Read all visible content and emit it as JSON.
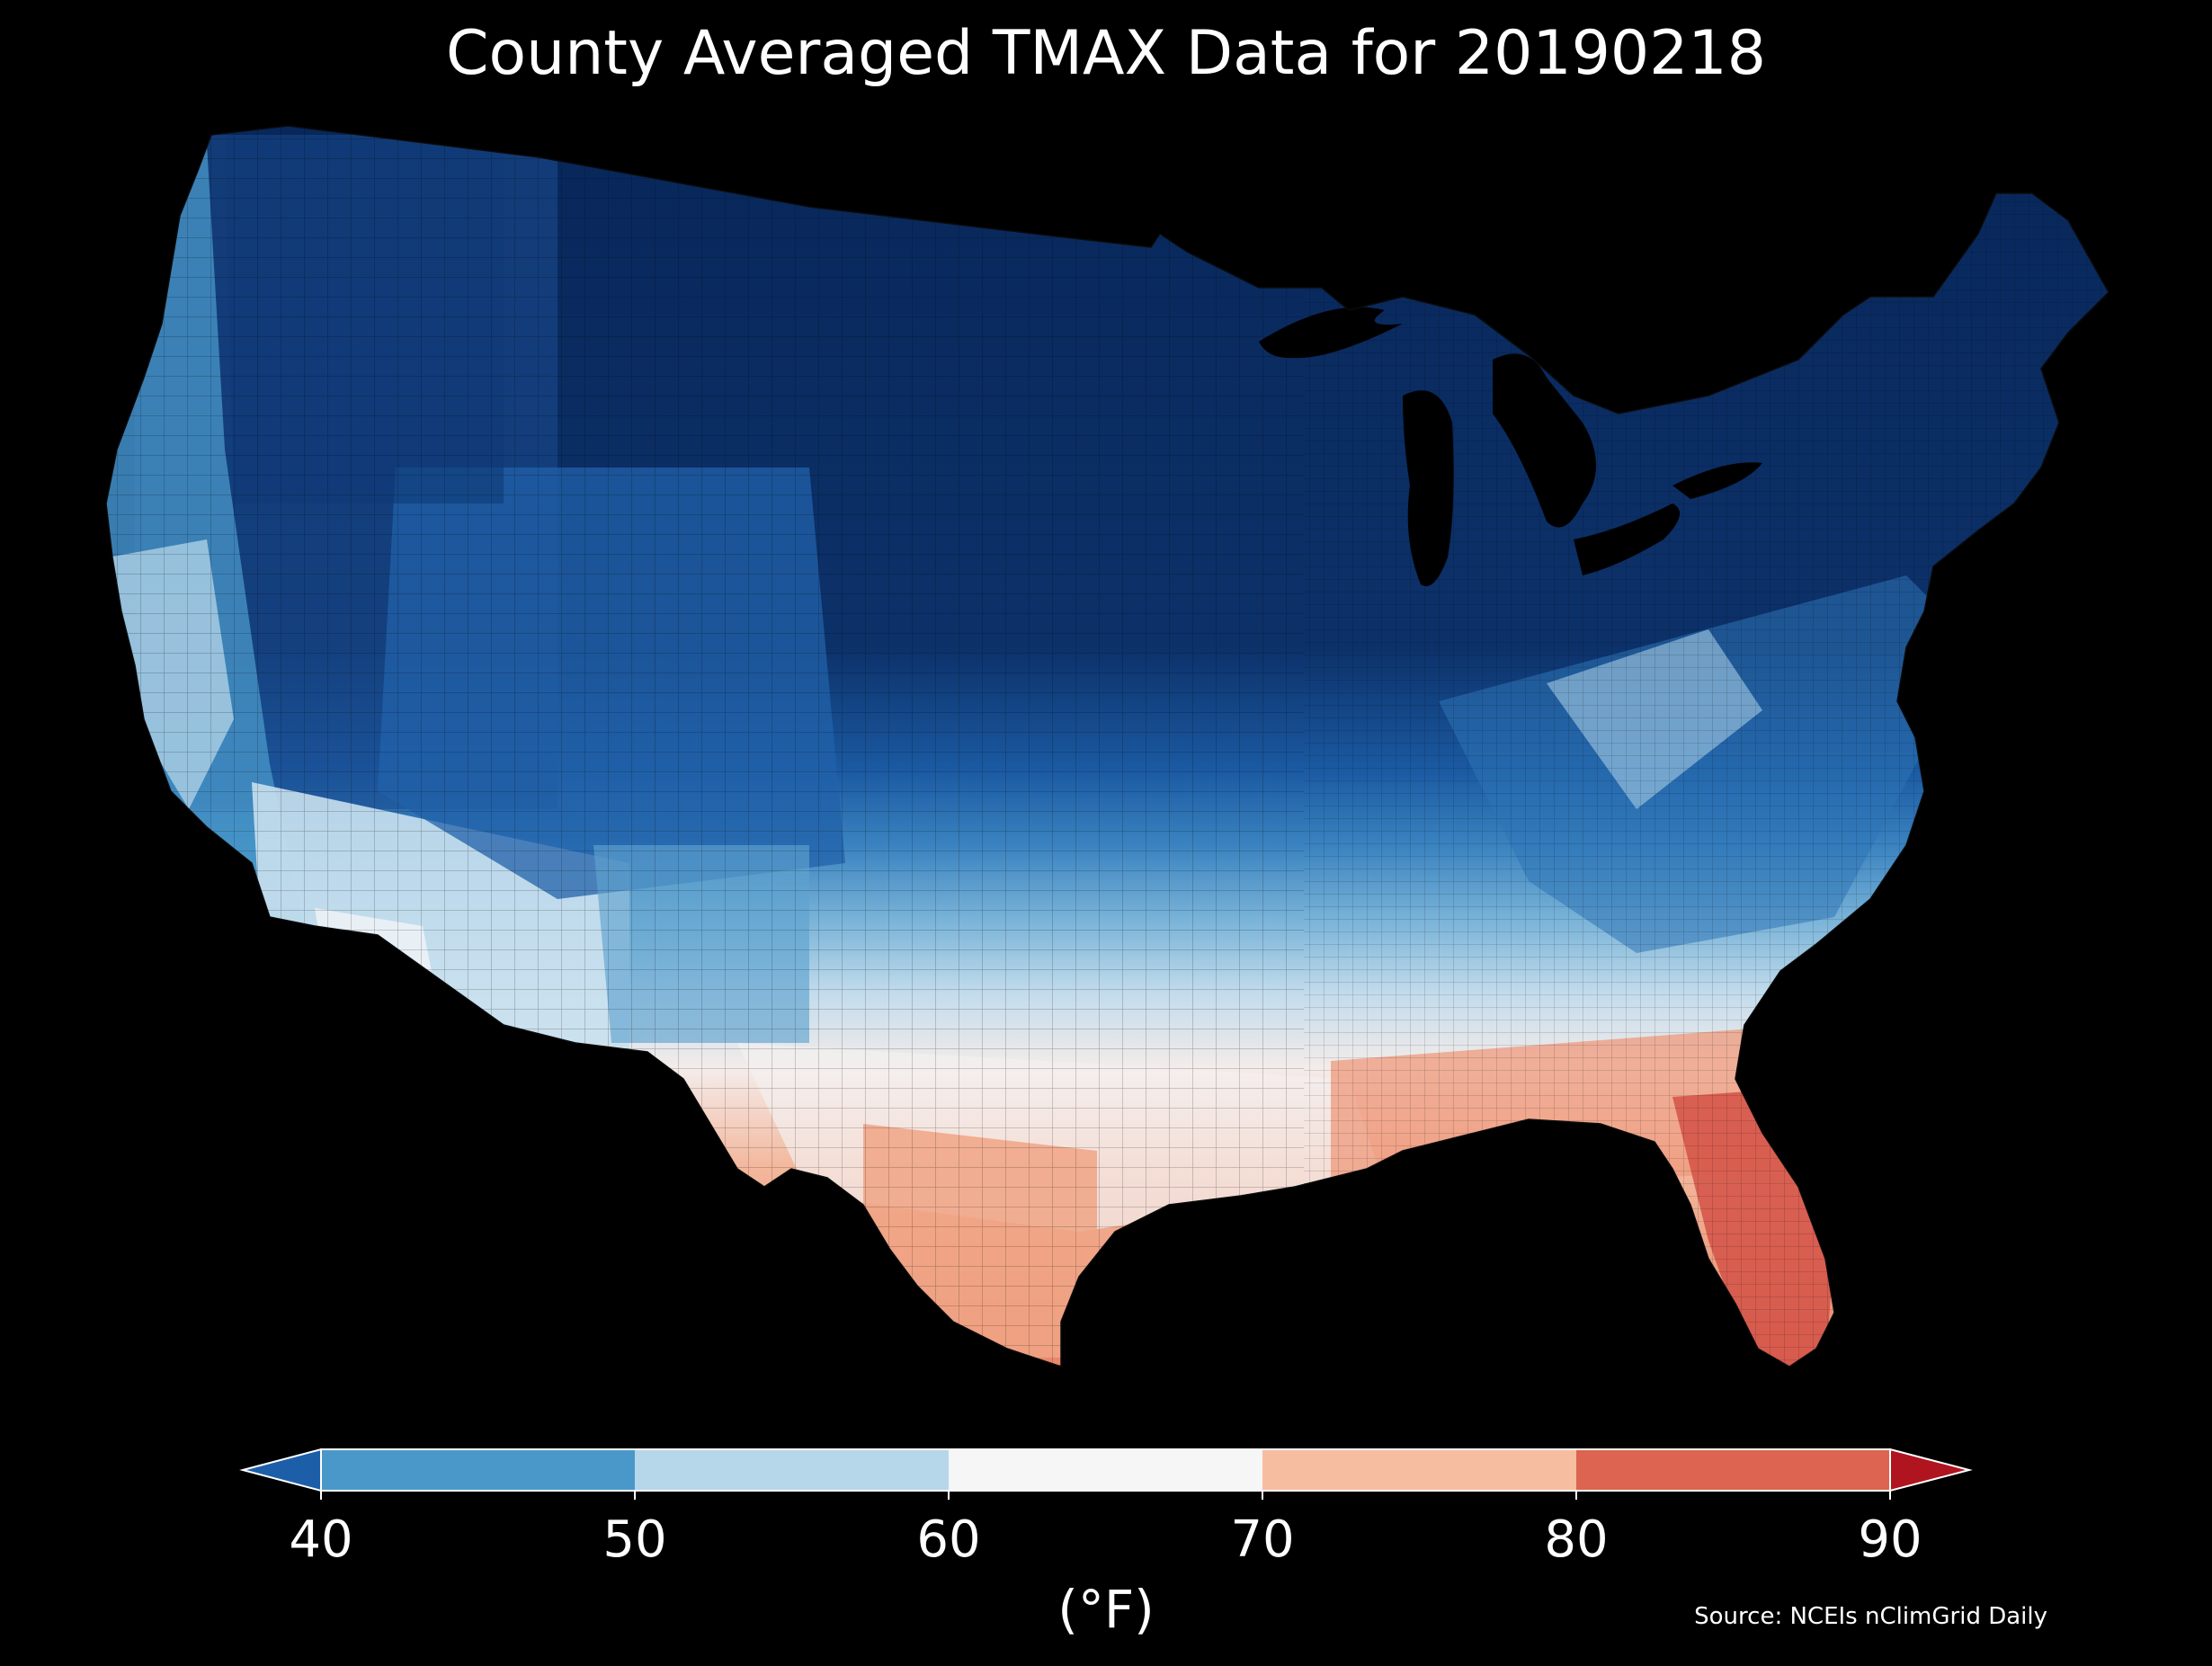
{
  "title": "County Averaged TMAX Data for 20190218",
  "source": "Source: NCEIs nClimGrid Daily",
  "colorbar": {
    "label": "(°F)",
    "ticks": [
      "40",
      "50",
      "60",
      "70",
      "80",
      "90"
    ],
    "extend": "both",
    "bins": [
      {
        "range": "<40",
        "color": "#1c5fa8"
      },
      {
        "range": "40-50",
        "color": "#4a98c9"
      },
      {
        "range": "50-60",
        "color": "#b6d7ea"
      },
      {
        "range": "60-70",
        "color": "#f6f6f6"
      },
      {
        "range": "70-80",
        "color": "#f7bda0"
      },
      {
        "range": "80-90",
        "color": "#dc6450"
      },
      {
        "range": ">90",
        "color": "#b0141f"
      }
    ]
  },
  "map": {
    "region": "Contiguous United States",
    "variable": "TMAX",
    "units": "°F",
    "background": "#000000",
    "regions": [
      {
        "name": "Northern tier",
        "value_range": "<40",
        "color": "#0b2d61"
      },
      {
        "name": "Northwest interior",
        "value_range": "<40",
        "color": "#1a4f91"
      },
      {
        "name": "Great Basin / Utah",
        "value_range": "40-50",
        "color": "#2363ad"
      },
      {
        "name": "Pacific Coast",
        "value_range": "40-60",
        "color": "#4a98c9"
      },
      {
        "name": "Southern California / Arizona",
        "value_range": "50-60",
        "color": "#cde2ef"
      },
      {
        "name": "Southern Plains",
        "value_range": "50-60",
        "color": "#a9cfe4"
      },
      {
        "name": "Mid-Atlantic / Appalachians",
        "value_range": "40-50",
        "color": "#4a8fc4"
      },
      {
        "name": "Gulf Coast",
        "value_range": "60-70",
        "color": "#f6e6de"
      },
      {
        "name": "South Texas",
        "value_range": "70-80",
        "color": "#f0a887"
      },
      {
        "name": "Southeast / Florida Panhandle",
        "value_range": "70-80",
        "color": "#ee8f72"
      },
      {
        "name": "Peninsular Florida",
        "value_range": "80-90",
        "color": "#d8574a"
      }
    ]
  }
}
